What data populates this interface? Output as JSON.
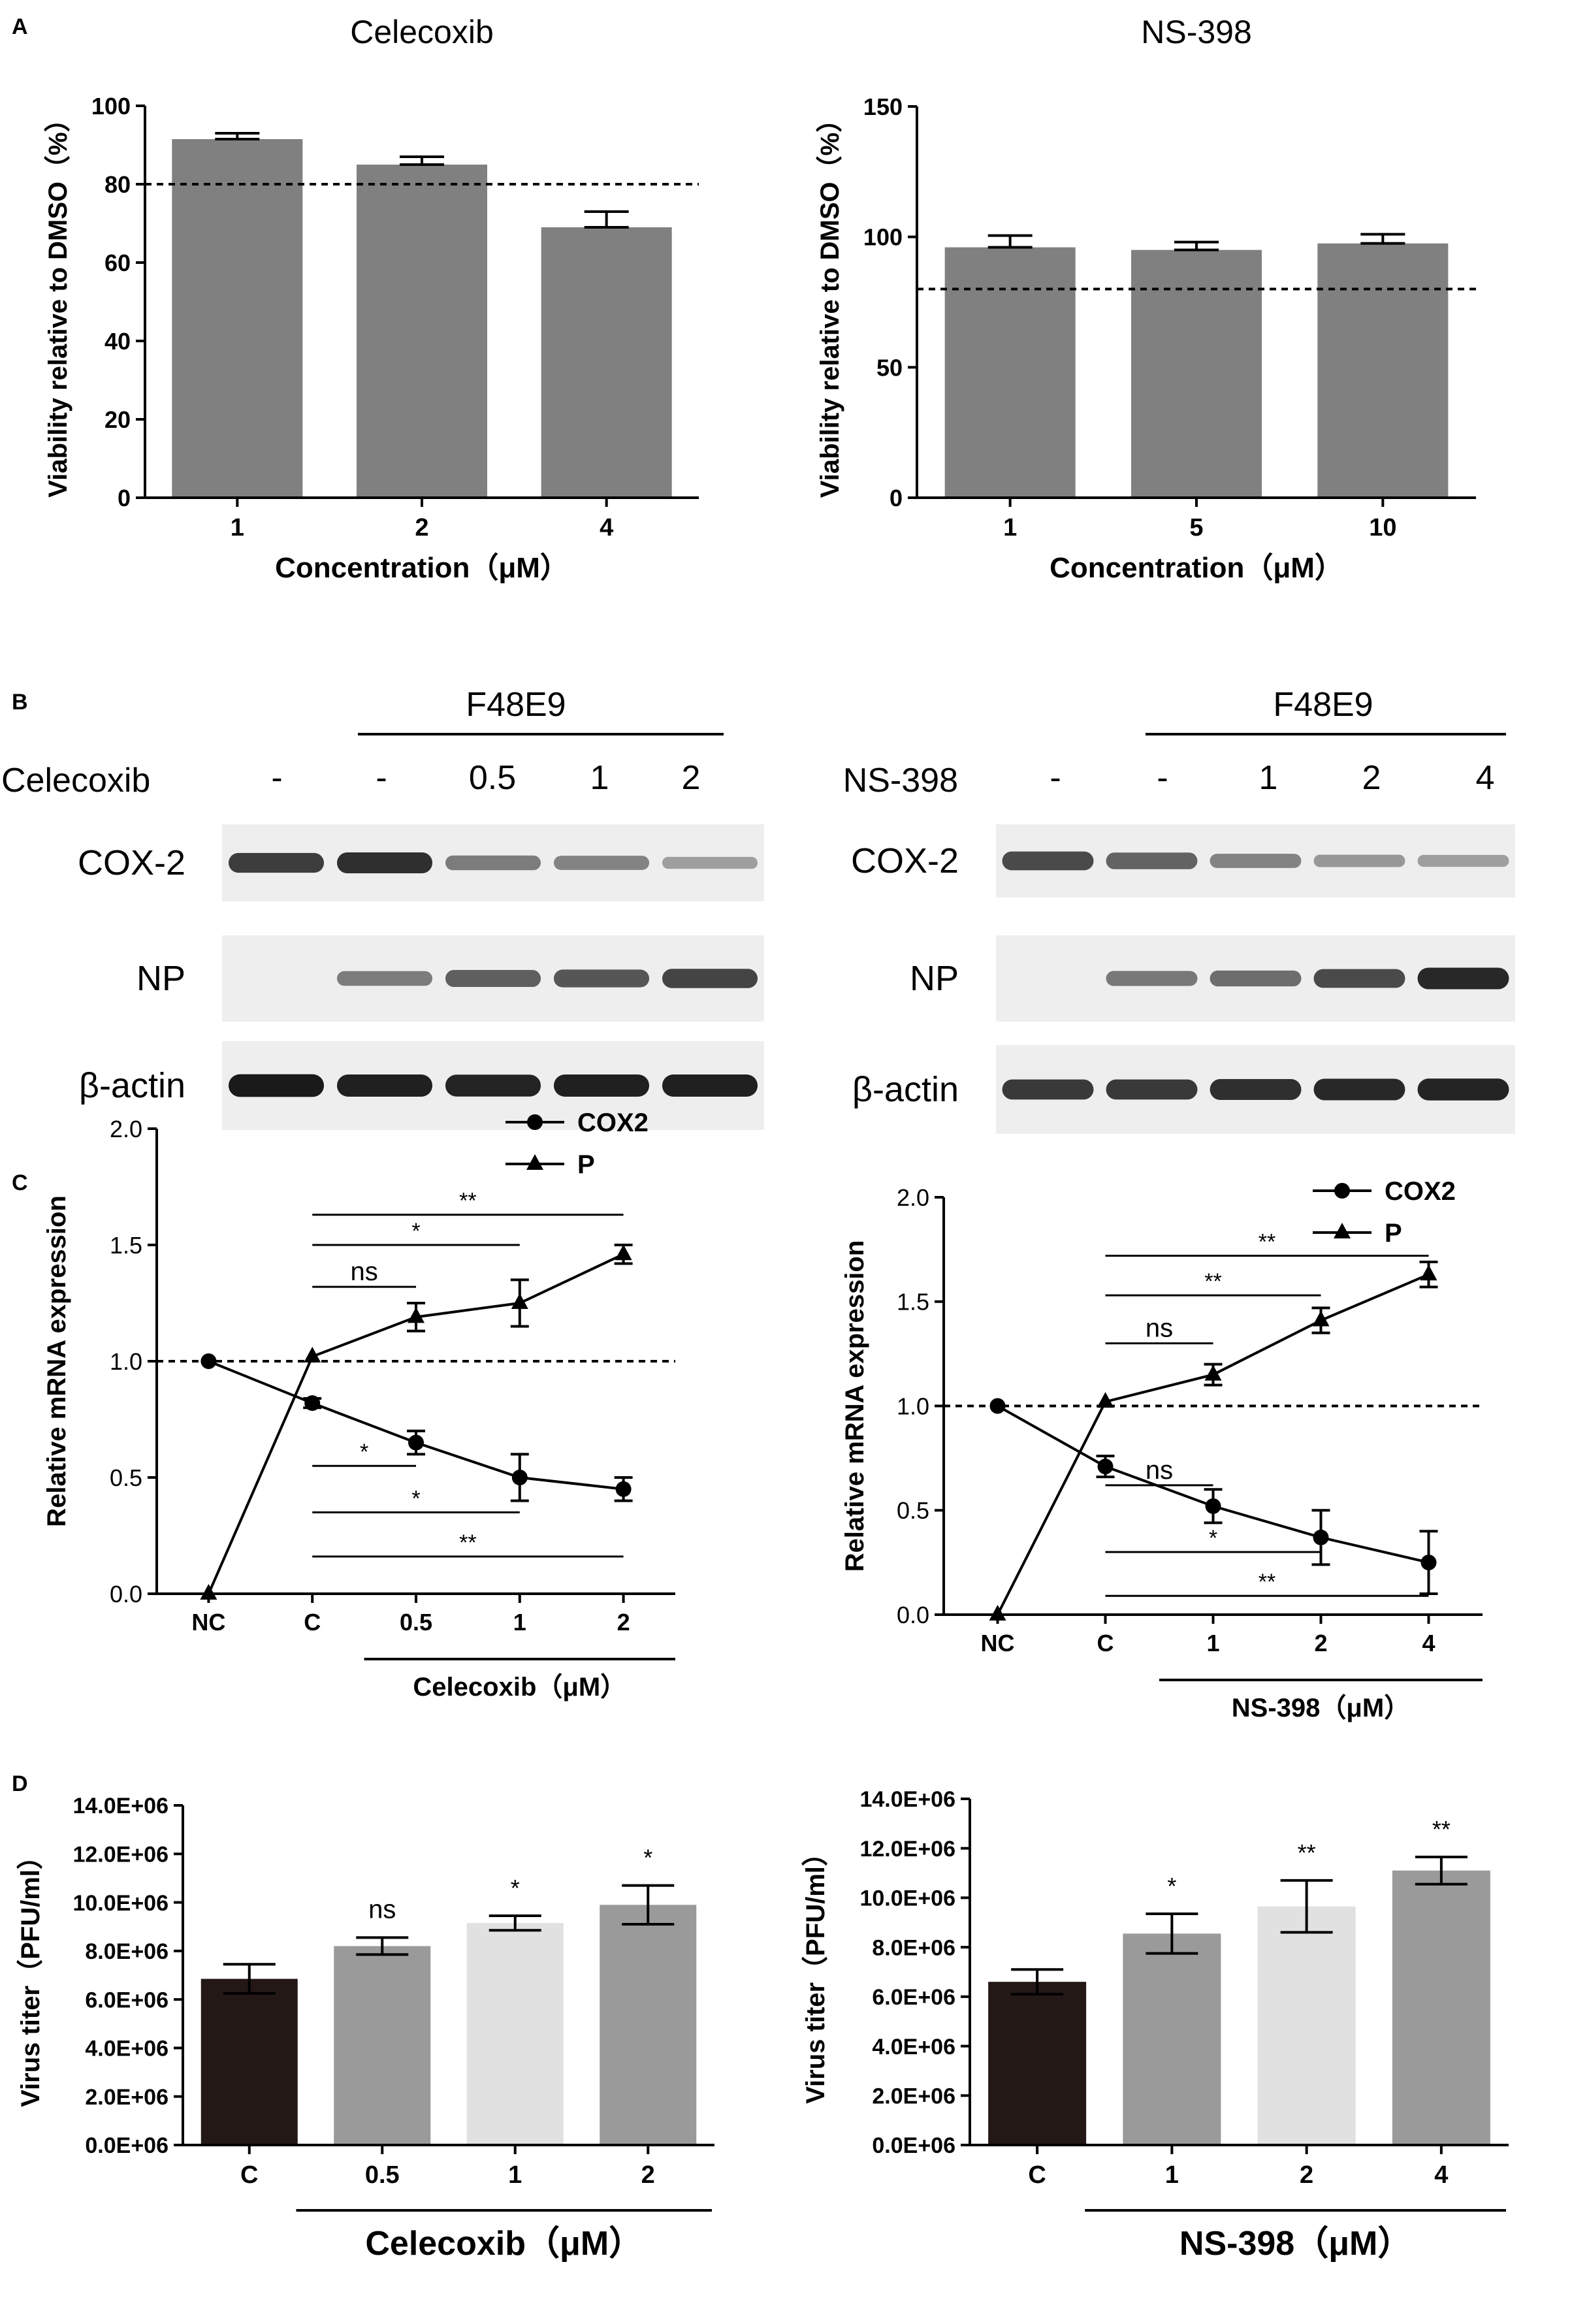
{
  "panels": {
    "A": "A",
    "B": "B",
    "C": "C",
    "D": "D"
  },
  "chart_data": [
    {
      "id": "A1",
      "type": "bar",
      "title": "Celecoxib",
      "xlabel": "Concentration（μM）",
      "ylabel": "Viability relative to DMSO（%）",
      "categories": [
        "1",
        "2",
        "4"
      ],
      "values": [
        91.5,
        85,
        69
      ],
      "errors": [
        1.5,
        2,
        4
      ],
      "ylim": [
        0,
        100
      ],
      "yticks": [
        "0",
        "20",
        "40",
        "60",
        "80",
        "100"
      ],
      "ytick_values": [
        0,
        20,
        40,
        60,
        80,
        100
      ],
      "reference_line": 80,
      "bar_color": "#808080"
    },
    {
      "id": "A2",
      "type": "bar",
      "title": "NS-398",
      "xlabel": "Concentration（μM）",
      "ylabel": "Viability relative to DMSO（%）",
      "categories": [
        "1",
        "5",
        "10"
      ],
      "values": [
        96,
        95,
        97.5
      ],
      "errors": [
        4.5,
        3,
        3.5
      ],
      "ylim": [
        0,
        150
      ],
      "yticks": [
        "0",
        "50",
        "100",
        "150"
      ],
      "ytick_values": [
        0,
        50,
        100,
        150
      ],
      "reference_line": 80,
      "bar_color": "#808080"
    },
    {
      "id": "C1",
      "type": "line",
      "ylabel": "Relative mRNA expression",
      "x": [
        "NC",
        "C",
        "0.5",
        "1",
        "2"
      ],
      "group_label": "Celecoxib（μM）",
      "ylim": [
        0,
        2
      ],
      "yticks": [
        "0.0",
        "0.5",
        "1.0",
        "1.5",
        "2.0"
      ],
      "ytick_values": [
        0,
        0.5,
        1,
        1.5,
        2
      ],
      "reference_line": 1.0,
      "legend": "top-right",
      "series": [
        {
          "name": "COX2",
          "marker": "circle",
          "values": [
            1.0,
            0.82,
            0.65,
            0.5,
            0.45
          ],
          "errors": [
            0,
            0.02,
            0.05,
            0.1,
            0.05
          ]
        },
        {
          "name": "P",
          "marker": "triangle",
          "values": [
            0.0,
            1.02,
            1.19,
            1.25,
            1.46
          ],
          "errors": [
            0,
            0,
            0.06,
            0.1,
            0.04
          ]
        }
      ],
      "significance": [
        {
          "label": "ns",
          "from": 1,
          "to": 2,
          "y": 1.32
        },
        {
          "label": "*",
          "from": 1,
          "to": 3,
          "y": 1.5
        },
        {
          "label": "**",
          "from": 1,
          "to": 4,
          "y": 1.63
        },
        {
          "label": "*",
          "from": 1,
          "to": 2,
          "y": 0.55
        },
        {
          "label": "*",
          "from": 1,
          "to": 3,
          "y": 0.35
        },
        {
          "label": "**",
          "from": 1,
          "to": 4,
          "y": 0.16
        }
      ]
    },
    {
      "id": "C2",
      "type": "line",
      "ylabel": "Relative mRNA expression",
      "x": [
        "NC",
        "C",
        "1",
        "2",
        "4"
      ],
      "group_label": "NS-398（μM）",
      "ylim": [
        0,
        2
      ],
      "yticks": [
        "0.0",
        "0.5",
        "1.0",
        "1.5",
        "2.0"
      ],
      "ytick_values": [
        0,
        0.5,
        1,
        1.5,
        2
      ],
      "reference_line": 1.0,
      "legend": "top-right",
      "series": [
        {
          "name": "COX2",
          "marker": "circle",
          "values": [
            1.0,
            0.71,
            0.52,
            0.37,
            0.25
          ],
          "errors": [
            0,
            0.05,
            0.08,
            0.13,
            0.15
          ]
        },
        {
          "name": "P",
          "marker": "triangle",
          "values": [
            0.0,
            1.02,
            1.15,
            1.41,
            1.63
          ],
          "errors": [
            0,
            0,
            0.05,
            0.06,
            0.06
          ]
        }
      ],
      "significance": [
        {
          "label": "ns",
          "from": 1,
          "to": 2,
          "y": 1.3
        },
        {
          "label": "**",
          "from": 1,
          "to": 3,
          "y": 1.53
        },
        {
          "label": "**",
          "from": 1,
          "to": 4,
          "y": 1.72
        },
        {
          "label": "ns",
          "from": 1,
          "to": 2,
          "y": 0.62
        },
        {
          "label": "*",
          "from": 1,
          "to": 3,
          "y": 0.3
        },
        {
          "label": "**",
          "from": 1,
          "to": 4,
          "y": 0.09
        }
      ]
    },
    {
      "id": "D1",
      "type": "bar",
      "ylabel": "Virus titer（PFU/ml）",
      "categories": [
        "C",
        "0.5",
        "1",
        "2"
      ],
      "values": [
        6850000,
        8200000,
        9150000,
        9900000
      ],
      "errors": [
        600000,
        350000,
        300000,
        800000
      ],
      "group_label": "Celecoxib（μM）",
      "ylim": [
        0,
        14000000
      ],
      "yticks": [
        "0.0E+06",
        "2.0E+06",
        "4.0E+06",
        "6.0E+06",
        "8.0E+06",
        "10.0E+06",
        "12.0E+06",
        "14.0E+06"
      ],
      "ytick_values": [
        0,
        2000000,
        4000000,
        6000000,
        8000000,
        10000000,
        12000000,
        14000000
      ],
      "significance": [
        "",
        "ns",
        "*",
        "*"
      ],
      "bar_colors": [
        "#231816",
        "#9a9a9a",
        "#e1e1e1",
        "#9a9a9a"
      ]
    },
    {
      "id": "D2",
      "type": "bar",
      "ylabel": "Virus titer（PFU/ml）",
      "categories": [
        "C",
        "1",
        "2",
        "4"
      ],
      "values": [
        6600000,
        8550000,
        9650000,
        11100000
      ],
      "errors": [
        500000,
        800000,
        1050000,
        550000
      ],
      "group_label": "NS-398（μM）",
      "ylim": [
        0,
        14000000
      ],
      "yticks": [
        "0.0E+06",
        "2.0E+06",
        "4.0E+06",
        "6.0E+06",
        "8.0E+06",
        "10.0E+06",
        "12.0E+06",
        "14.0E+06"
      ],
      "ytick_values": [
        0,
        2000000,
        4000000,
        6000000,
        8000000,
        10000000,
        12000000,
        14000000
      ],
      "significance": [
        "",
        "*",
        "**",
        "**"
      ],
      "bar_colors": [
        "#231816",
        "#9a9a9a",
        "#e1e1e1",
        "#9a9a9a"
      ]
    }
  ],
  "blots": [
    {
      "id": "B1",
      "header": "F48E9",
      "drug": "Celecoxib",
      "lanes": [
        "-",
        "-",
        "0.5",
        "1",
        "2"
      ],
      "rows": [
        {
          "label": "COX-2",
          "intensity": [
            0.78,
            0.85,
            0.48,
            0.45,
            0.32
          ]
        },
        {
          "label": "NP",
          "intensity": [
            0.0,
            0.48,
            0.62,
            0.66,
            0.75
          ]
        },
        {
          "label": "β-actin",
          "intensity": [
            0.95,
            0.92,
            0.9,
            0.92,
            0.92
          ]
        }
      ]
    },
    {
      "id": "B2",
      "header": "F48E9",
      "drug": "NS-398",
      "lanes": [
        "-",
        "-",
        "1",
        "2",
        "4"
      ],
      "rows": [
        {
          "label": "COX-2",
          "intensity": [
            0.72,
            0.6,
            0.45,
            0.35,
            0.32
          ]
        },
        {
          "label": "NP",
          "intensity": [
            0.0,
            0.5,
            0.55,
            0.72,
            0.88
          ]
        },
        {
          "label": "β-actin",
          "intensity": [
            0.8,
            0.8,
            0.85,
            0.88,
            0.9
          ]
        }
      ]
    }
  ]
}
